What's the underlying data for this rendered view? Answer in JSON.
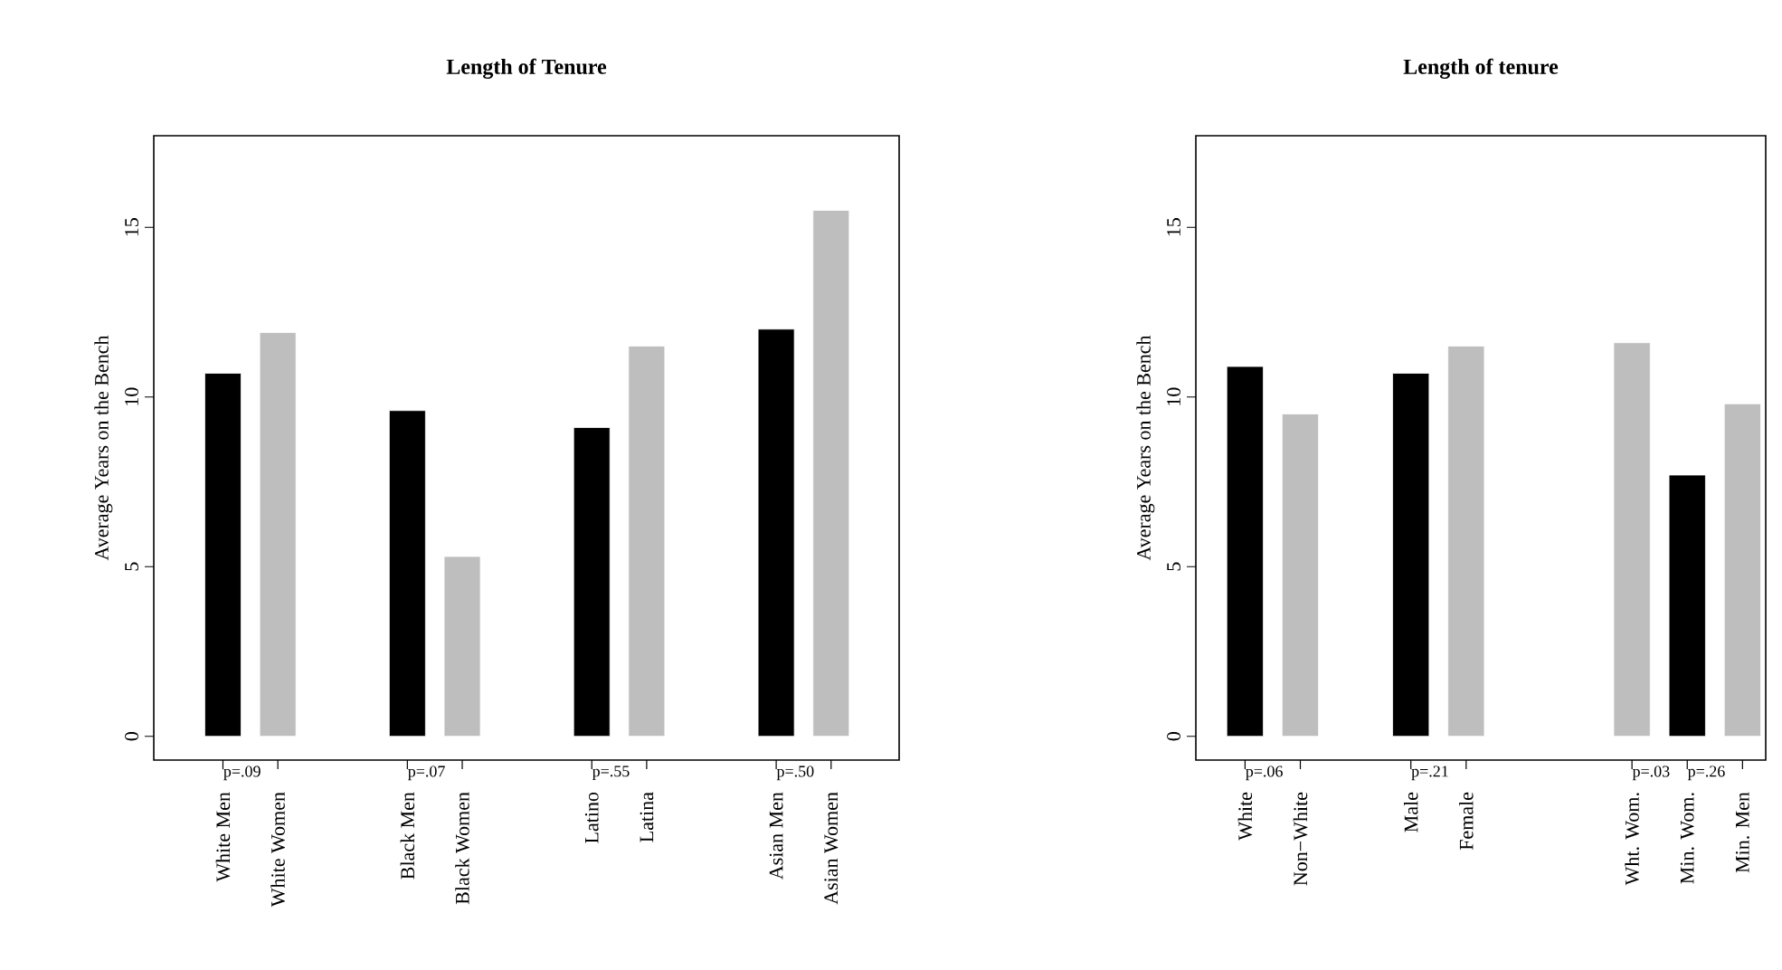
{
  "chart_data": [
    {
      "type": "bar",
      "title": "Length of Tenure",
      "ylabel": "Average Years on the Bench",
      "categories": [
        "White Men",
        "White Women",
        "Black Men",
        "Black Women",
        "Latino",
        "Latina",
        "Asian Men",
        "Asian Women"
      ],
      "values": [
        10.7,
        11.9,
        9.6,
        5.3,
        9.1,
        11.5,
        12.0,
        15.5
      ],
      "colors": [
        "#000000",
        "#bebebe",
        "#000000",
        "#bebebe",
        "#000000",
        "#bebebe",
        "#000000",
        "#bebebe"
      ],
      "ylim": [
        -0.7,
        17.7
      ],
      "yticks": [
        0,
        5,
        10,
        15
      ],
      "annotations": [
        "p=.09",
        "p=.07",
        "p=.55",
        "p=.50"
      ]
    },
    {
      "type": "bar",
      "title": "Length of tenure",
      "ylabel": "Average Years on the Bench",
      "categories": [
        "White",
        "Non−White",
        "Male",
        "Female",
        "Wht. Wom.",
        "Min. Wom.",
        "Min. Men"
      ],
      "values": [
        10.9,
        9.5,
        10.7,
        11.5,
        11.6,
        7.7,
        9.8
      ],
      "colors": [
        "#000000",
        "#bebebe",
        "#000000",
        "#bebebe",
        "#bebebe",
        "#000000",
        "#bebebe"
      ],
      "ylim": [
        -0.7,
        17.7
      ],
      "yticks": [
        0,
        5,
        10,
        15
      ],
      "annotations": [
        "p=.06",
        "p=.21",
        "p=.03",
        "p=.26"
      ]
    }
  ]
}
